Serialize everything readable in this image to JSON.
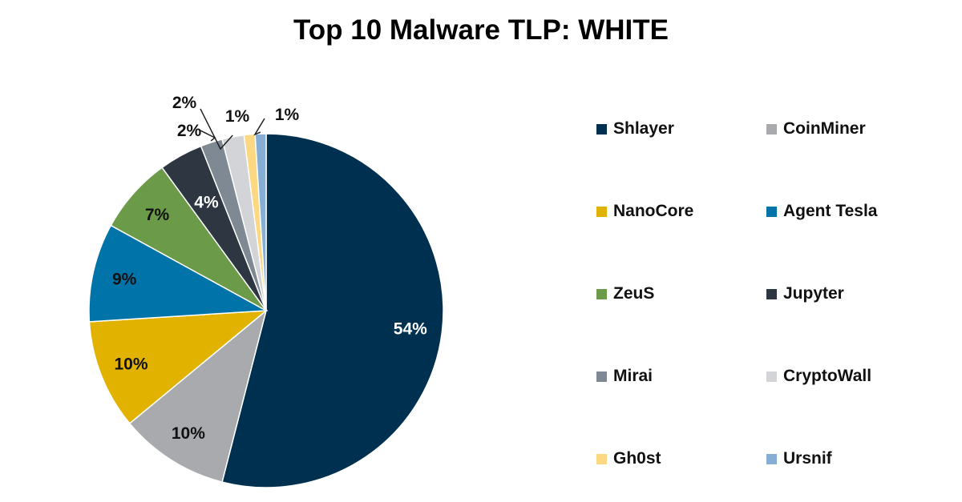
{
  "chart_data": {
    "type": "pie",
    "title": "Top 10 Malware TLP: WHITE",
    "legend_position": "right",
    "slices": [
      {
        "name": "Shlayer",
        "value": 54,
        "label": "54%",
        "color": "#00304f"
      },
      {
        "name": "CoinMiner",
        "value": 10,
        "label": "10%",
        "color": "#a8aaad"
      },
      {
        "name": "NanoCore",
        "value": 10,
        "label": "10%",
        "color": "#e1b300"
      },
      {
        "name": "Agent Tesla",
        "value": 9,
        "label": "9%",
        "color": "#0074a9"
      },
      {
        "name": "ZeuS",
        "value": 7,
        "label": "7%",
        "color": "#6b9a49"
      },
      {
        "name": "Jupyter",
        "value": 4,
        "label": "4%",
        "color": "#2d3641"
      },
      {
        "name": "Mirai",
        "value": 2,
        "label": "2%",
        "color": "#7f8994"
      },
      {
        "name": "CryptoWall",
        "value": 2,
        "label": "2%",
        "color": "#d2d4d7"
      },
      {
        "name": "Gh0st",
        "value": 1,
        "label": "1%",
        "color": "#fdd882"
      },
      {
        "name": "Ursnif",
        "value": 1,
        "label": "1%",
        "color": "#86add3"
      }
    ]
  }
}
